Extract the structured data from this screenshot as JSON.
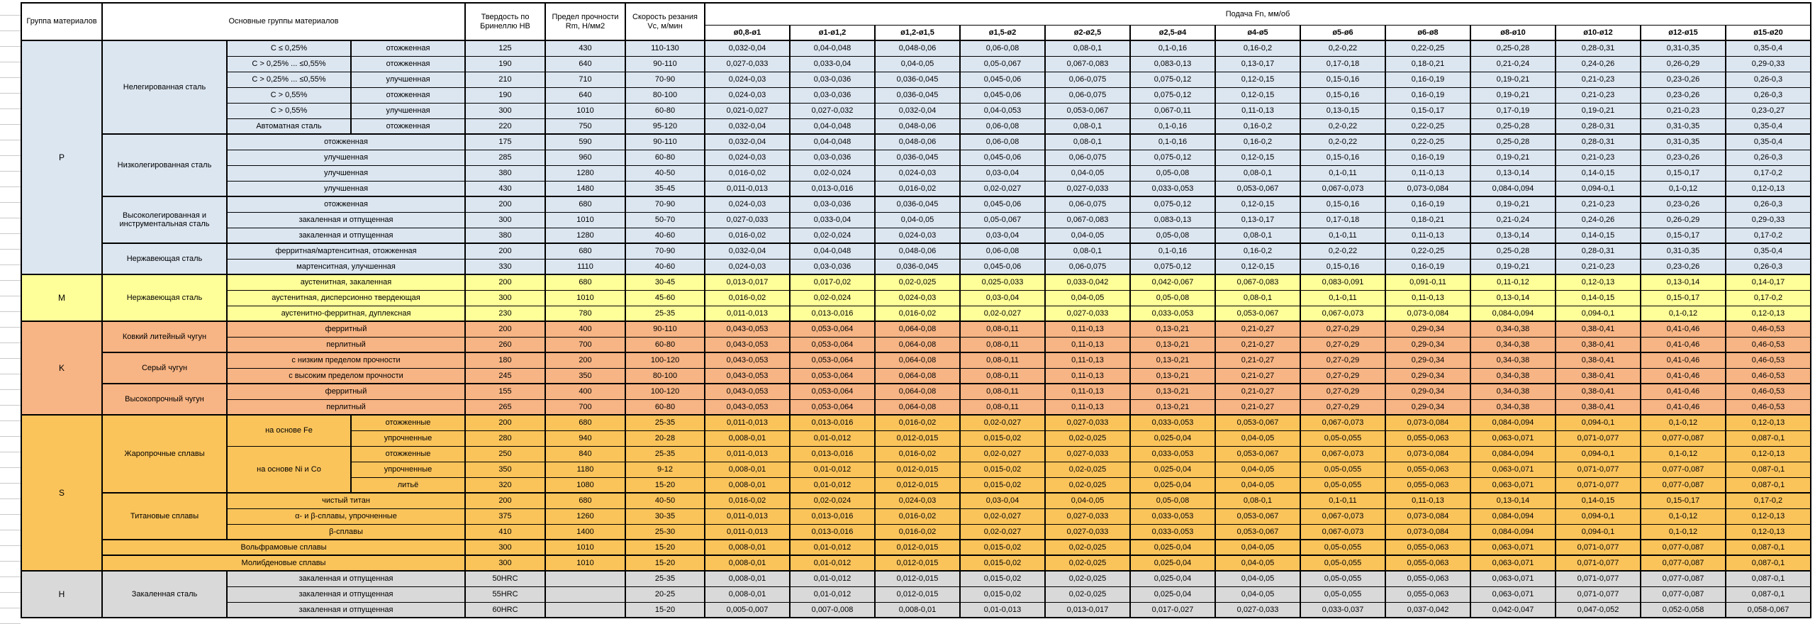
{
  "header": {
    "col_group": "Группа материалов",
    "col_main": "Основные группы материалов",
    "col_hardness": "Твердость по Бринеллю HB",
    "col_strength": "Предел прочности Rm, Н/мм2",
    "col_speed": "Скорость резания Vc, м/мин",
    "col_feed": "Подача Fn, мм/об",
    "feed_cols": [
      "ø0,8-ø1",
      "ø1-ø1,2",
      "ø1,2-ø1,5",
      "ø1,5-ø2",
      "ø2-ø2,5",
      "ø2,5-ø4",
      "ø4-ø5",
      "ø5-ø6",
      "ø6-ø8",
      "ø8-ø10",
      "ø10-ø12",
      "ø12-ø15",
      "ø15-ø20"
    ]
  },
  "colors": {
    "P": "#DCE6F1",
    "M": "#FFFF99",
    "K": "#F7B484",
    "S": "#FBC45B",
    "H": "#D9D9D9"
  },
  "feed_patterns": {
    "A": [
      "0,032-0,04",
      "0,04-0,048",
      "0,048-0,06",
      "0,06-0,08",
      "0,08-0,1",
      "0,1-0,16",
      "0,16-0,2",
      "0,2-0,22",
      "0,22-0,25",
      "0,25-0,28",
      "0,28-0,31",
      "0,31-0,35",
      "0,35-0,4"
    ],
    "B": [
      "0,027-0,033",
      "0,033-0,04",
      "0,04-0,05",
      "0,05-0,067",
      "0,067-0,083",
      "0,083-0,13",
      "0,13-0,17",
      "0,17-0,18",
      "0,18-0,21",
      "0,21-0,24",
      "0,24-0,26",
      "0,26-0,29",
      "0,29-0,33"
    ],
    "C": [
      "0,024-0,03",
      "0,03-0,036",
      "0,036-0,045",
      "0,045-0,06",
      "0,06-0,075",
      "0,075-0,12",
      "0,12-0,15",
      "0,15-0,16",
      "0,16-0,19",
      "0,19-0,21",
      "0,21-0,23",
      "0,23-0,26",
      "0,26-0,3"
    ],
    "P5": [
      "0,021-0,027",
      "0,027-0,032",
      "0,032-0,04",
      "0,04-0,053",
      "0,053-0,067",
      "0,067-0,11",
      "0,11-0,13",
      "0,13-0,15",
      "0,15-0,17",
      "0,17-0,19",
      "0,19-0,21",
      "0,21-0,23",
      "0,23-0,27"
    ],
    "D": [
      "0,016-0,02",
      "0,02-0,024",
      "0,024-0,03",
      "0,03-0,04",
      "0,04-0,05",
      "0,05-0,08",
      "0,08-0,1",
      "0,1-0,11",
      "0,11-0,13",
      "0,13-0,14",
      "0,14-0,15",
      "0,15-0,17",
      "0,17-0,2"
    ],
    "E": [
      "0,011-0,013",
      "0,013-0,016",
      "0,016-0,02",
      "0,02-0,027",
      "0,027-0,033",
      "0,033-0,053",
      "0,053-0,067",
      "0,067-0,073",
      "0,073-0,084",
      "0,084-0,094",
      "0,094-0,1",
      "0,1-0,12",
      "0,12-0,13"
    ],
    "F": [
      "0,008-0,01",
      "0,01-0,012",
      "0,012-0,015",
      "0,015-0,02",
      "0,02-0,025",
      "0,025-0,04",
      "0,04-0,05",
      "0,05-0,055",
      "0,055-0,063",
      "0,063-0,071",
      "0,071-0,077",
      "0,077-0,087",
      "0,087-0,1"
    ],
    "M1": [
      "0,013-0,017",
      "0,017-0,02",
      "0,02-0,025",
      "0,025-0,033",
      "0,033-0,042",
      "0,042-0,067",
      "0,067-0,083",
      "0,083-0,091",
      "0,091-0,11",
      "0,11-0,12",
      "0,12-0,13",
      "0,13-0,14",
      "0,14-0,17"
    ],
    "K": [
      "0,043-0,053",
      "0,053-0,064",
      "0,064-0,08",
      "0,08-0,11",
      "0,11-0,13",
      "0,13-0,21",
      "0,21-0,27",
      "0,27-0,29",
      "0,29-0,34",
      "0,34-0,38",
      "0,38-0,41",
      "0,41-0,46",
      "0,46-0,53"
    ],
    "H60": [
      "0,005-0,007",
      "0,007-0,008",
      "0,008-0,01",
      "0,01-0,013",
      "0,013-0,017",
      "0,017-0,027",
      "0,027-0,033",
      "0,033-0,037",
      "0,037-0,042",
      "0,042-0,047",
      "0,047-0,052",
      "0,052-0,058",
      "0,058-0,067"
    ]
  },
  "rows": [
    {
      "g": "P",
      "gs": true,
      "left": [
        {
          "c": "group",
          "t": "P",
          "rs": 15
        },
        {
          "c": "material",
          "t": "Нелегированная сталь",
          "rs": 6
        },
        {
          "c": "spec",
          "t": "C ≤ 0,25%"
        },
        {
          "c": "state",
          "t": "отожженная"
        }
      ],
      "hb": "125",
      "rm": "430",
      "vc": "110-130",
      "f": "A"
    },
    {
      "g": "P",
      "left": [
        {
          "c": "spec",
          "t": "C > 0,25% ... ≤0,55%"
        },
        {
          "c": "state",
          "t": "отожженная"
        }
      ],
      "hb": "190",
      "rm": "640",
      "vc": "90-110",
      "f": "B"
    },
    {
      "g": "P",
      "left": [
        {
          "c": "spec",
          "t": "C > 0,25% ... ≤0,55%"
        },
        {
          "c": "state",
          "t": "улучшенная"
        }
      ],
      "hb": "210",
      "rm": "710",
      "vc": "70-90",
      "f": "C"
    },
    {
      "g": "P",
      "left": [
        {
          "c": "spec",
          "t": "C > 0,55%"
        },
        {
          "c": "state",
          "t": "отожженная"
        }
      ],
      "hb": "190",
      "rm": "640",
      "vc": "80-100",
      "f": "C"
    },
    {
      "g": "P",
      "left": [
        {
          "c": "spec",
          "t": "C > 0,55%"
        },
        {
          "c": "state",
          "t": "улучшенная"
        }
      ],
      "hb": "300",
      "rm": "1010",
      "vc": "60-80",
      "f": "P5"
    },
    {
      "g": "P",
      "left": [
        {
          "c": "spec",
          "t": "Автоматная сталь"
        },
        {
          "c": "state",
          "t": "отожженная"
        }
      ],
      "hb": "220",
      "rm": "750",
      "vc": "95-120",
      "f": "A"
    },
    {
      "g": "P",
      "sep": true,
      "left": [
        {
          "c": "material",
          "t": "Низколегированная сталь",
          "rs": 4
        },
        {
          "c": "spec",
          "t": "отожженная",
          "cs": 2
        }
      ],
      "hb": "175",
      "rm": "590",
      "vc": "90-110",
      "f": "A"
    },
    {
      "g": "P",
      "left": [
        {
          "c": "spec",
          "t": "улучшенная",
          "cs": 2
        }
      ],
      "hb": "285",
      "rm": "960",
      "vc": "60-80",
      "f": "C"
    },
    {
      "g": "P",
      "left": [
        {
          "c": "spec",
          "t": "улучшенная",
          "cs": 2
        }
      ],
      "hb": "380",
      "rm": "1280",
      "vc": "40-50",
      "f": "D"
    },
    {
      "g": "P",
      "left": [
        {
          "c": "spec",
          "t": "улучшенная",
          "cs": 2
        }
      ],
      "hb": "430",
      "rm": "1480",
      "vc": "35-45",
      "f": "E"
    },
    {
      "g": "P",
      "sep": true,
      "left": [
        {
          "c": "material",
          "t": "Высоколегированная и инструментальная сталь",
          "rs": 3
        },
        {
          "c": "spec",
          "t": "отожженная",
          "cs": 2
        }
      ],
      "hb": "200",
      "rm": "680",
      "vc": "70-90",
      "f": "C"
    },
    {
      "g": "P",
      "left": [
        {
          "c": "spec",
          "t": "закаленная и отпущенная",
          "cs": 2
        }
      ],
      "hb": "300",
      "rm": "1010",
      "vc": "50-70",
      "f": "B"
    },
    {
      "g": "P",
      "left": [
        {
          "c": "spec",
          "t": "закаленная и отпущенная",
          "cs": 2
        }
      ],
      "hb": "380",
      "rm": "1280",
      "vc": "40-60",
      "f": "D"
    },
    {
      "g": "P",
      "sep": true,
      "left": [
        {
          "c": "material",
          "t": "Нержавеющая сталь",
          "rs": 2
        },
        {
          "c": "spec",
          "t": "ферритная/мартенситная, отожженная",
          "cs": 2
        }
      ],
      "hb": "200",
      "rm": "680",
      "vc": "70-90",
      "f": "A"
    },
    {
      "g": "P",
      "left": [
        {
          "c": "spec",
          "t": "мартенситная, улучшенная",
          "cs": 2
        }
      ],
      "hb": "330",
      "rm": "1110",
      "vc": "40-60",
      "f": "C"
    },
    {
      "g": "M",
      "gs": true,
      "left": [
        {
          "c": "group",
          "t": "M",
          "rs": 3
        },
        {
          "c": "material",
          "t": "Нержавеющая сталь",
          "rs": 3
        },
        {
          "c": "spec",
          "t": "аустенитная, закаленная",
          "cs": 2
        }
      ],
      "hb": "200",
      "rm": "680",
      "vc": "30-45",
      "f": "M1"
    },
    {
      "g": "M",
      "left": [
        {
          "c": "spec",
          "t": "аустенитная, дисперсионно твердеющая",
          "cs": 2
        }
      ],
      "hb": "300",
      "rm": "1010",
      "vc": "45-60",
      "f": "D"
    },
    {
      "g": "M",
      "left": [
        {
          "c": "spec",
          "t": "аустенитно-ферритная, дуплексная",
          "cs": 2
        }
      ],
      "hb": "230",
      "rm": "780",
      "vc": "25-35",
      "f": "E"
    },
    {
      "g": "K",
      "gs": true,
      "left": [
        {
          "c": "group",
          "t": "K",
          "rs": 6
        },
        {
          "c": "material",
          "t": "Ковкий литейный чугун",
          "rs": 2
        },
        {
          "c": "spec",
          "t": "ферритный",
          "cs": 2
        }
      ],
      "hb": "200",
      "rm": "400",
      "vc": "90-110",
      "f": "K"
    },
    {
      "g": "K",
      "left": [
        {
          "c": "spec",
          "t": "перлитный",
          "cs": 2
        }
      ],
      "hb": "260",
      "rm": "700",
      "vc": "60-80",
      "f": "K"
    },
    {
      "g": "K",
      "sep": true,
      "left": [
        {
          "c": "material",
          "t": "Серый чугун",
          "rs": 2
        },
        {
          "c": "spec",
          "t": "с низким пределом прочности",
          "cs": 2
        }
      ],
      "hb": "180",
      "rm": "200",
      "vc": "100-120",
      "f": "K"
    },
    {
      "g": "K",
      "left": [
        {
          "c": "spec",
          "t": "с высоким пределом прочности",
          "cs": 2
        }
      ],
      "hb": "245",
      "rm": "350",
      "vc": "80-100",
      "f": "K"
    },
    {
      "g": "K",
      "sep": true,
      "left": [
        {
          "c": "material",
          "t": "Высокопрочный чугун",
          "rs": 2
        },
        {
          "c": "spec",
          "t": "ферритный",
          "cs": 2
        }
      ],
      "hb": "155",
      "rm": "400",
      "vc": "100-120",
      "f": "K"
    },
    {
      "g": "K",
      "left": [
        {
          "c": "spec",
          "t": "перлитный",
          "cs": 2
        }
      ],
      "hb": "265",
      "rm": "700",
      "vc": "60-80",
      "f": "K"
    },
    {
      "g": "S",
      "gs": true,
      "left": [
        {
          "c": "group",
          "t": "S",
          "rs": 10
        },
        {
          "c": "material",
          "t": "Жаропрочные сплавы",
          "rs": 5
        },
        {
          "c": "spec",
          "t": "на основе Fe",
          "rs": 2
        },
        {
          "c": "state",
          "t": "отожженные"
        }
      ],
      "hb": "200",
      "rm": "680",
      "vc": "25-35",
      "f": "E"
    },
    {
      "g": "S",
      "left": [
        {
          "c": "state",
          "t": "упрочненные"
        }
      ],
      "hb": "280",
      "rm": "940",
      "vc": "20-28",
      "f": "F"
    },
    {
      "g": "S",
      "left": [
        {
          "c": "spec",
          "t": "на основе Ni и Co",
          "rs": 3
        },
        {
          "c": "state",
          "t": "отожженные"
        }
      ],
      "hb": "250",
      "rm": "840",
      "vc": "25-35",
      "f": "E"
    },
    {
      "g": "S",
      "left": [
        {
          "c": "state",
          "t": "упрочненные"
        }
      ],
      "hb": "350",
      "rm": "1180",
      "vc": "9-12",
      "f": "F"
    },
    {
      "g": "S",
      "left": [
        {
          "c": "state",
          "t": "литьё"
        }
      ],
      "hb": "320",
      "rm": "1080",
      "vc": "15-20",
      "f": "F"
    },
    {
      "g": "S",
      "sep": true,
      "left": [
        {
          "c": "material",
          "t": "Титановые сплавы",
          "rs": 3
        },
        {
          "c": "spec",
          "t": "чистый титан",
          "cs": 2
        }
      ],
      "hb": "200",
      "rm": "680",
      "vc": "40-50",
      "f": "D"
    },
    {
      "g": "S",
      "left": [
        {
          "c": "spec",
          "t": "α- и β-сплавы, упрочненные",
          "cs": 2
        }
      ],
      "hb": "375",
      "rm": "1260",
      "vc": "30-35",
      "f": "E"
    },
    {
      "g": "S",
      "left": [
        {
          "c": "spec",
          "t": "β-сплавы",
          "cs": 2
        }
      ],
      "hb": "410",
      "rm": "1400",
      "vc": "25-30",
      "f": "E"
    },
    {
      "g": "S",
      "sep": true,
      "left": [
        {
          "c": "material",
          "t": "Вольфрамовые сплавы",
          "cs": 3
        }
      ],
      "hb": "300",
      "rm": "1010",
      "vc": "15-20",
      "f": "F"
    },
    {
      "g": "S",
      "sep": true,
      "left": [
        {
          "c": "material",
          "t": "Молибденовые сплавы",
          "cs": 3
        }
      ],
      "hb": "300",
      "rm": "1010",
      "vc": "15-20",
      "f": "F"
    },
    {
      "g": "H",
      "gs": true,
      "left": [
        {
          "c": "group",
          "t": "H",
          "rs": 3
        },
        {
          "c": "material",
          "t": "Закаленная сталь",
          "rs": 3
        },
        {
          "c": "spec",
          "t": "закаленная и отпущенная",
          "cs": 2
        }
      ],
      "hb": "50HRC",
      "rm": "",
      "vc": "25-35",
      "f": "F"
    },
    {
      "g": "H",
      "left": [
        {
          "c": "spec",
          "t": "закаленная и отпущенная",
          "cs": 2
        }
      ],
      "hb": "55HRC",
      "rm": "",
      "vc": "20-25",
      "f": "F"
    },
    {
      "g": "H",
      "left": [
        {
          "c": "spec",
          "t": "закаленная и отпущенная",
          "cs": 2
        }
      ],
      "hb": "60HRC",
      "rm": "",
      "vc": "15-20",
      "f": "H60"
    }
  ]
}
